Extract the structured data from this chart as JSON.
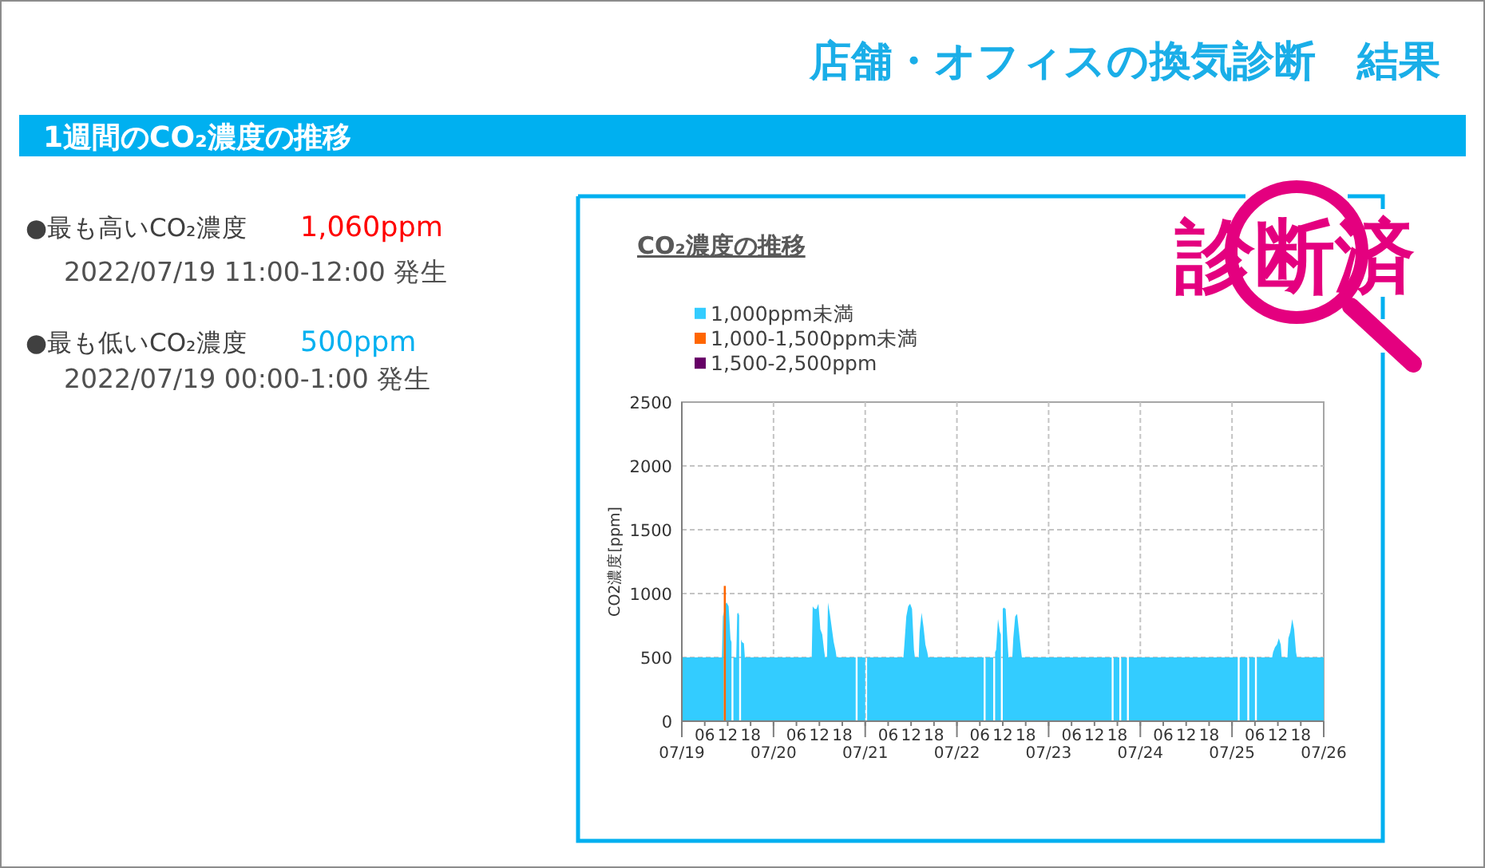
{
  "chart_data": [
    {
      "type": "other",
      "title": "店舗・オフィスの換気診断　結果",
      "subtitle": "1週間のCO₂濃度の推移",
      "annotations": [
        "●最も高いCO₂濃度",
        "1,060ppm",
        "2022/07/19 11:00-12:00 発生",
        "●最も低いCO₂濃度",
        "500ppm",
        "2022/07/19 00:00-1:00 発生",
        "診断済"
      ]
    },
    {
      "type": "area",
      "title": "CO₂濃度の推移",
      "ylabel": "CO2濃度[ppm]",
      "x": [
        "2022-07-19T00:00",
        "2022-07-19T10:30",
        "2022-07-19T10:45",
        "2022-07-19T11:00",
        "2022-07-19T11:15",
        "2022-07-19T11:30",
        "2022-07-19T11:45",
        "2022-07-19T12:15",
        "2022-07-19T12:45",
        "2022-07-19T13:00",
        "2022-07-19T13:15",
        "2022-07-19T13:30",
        "2022-07-19T14:15",
        "2022-07-19T14:30",
        "2022-07-19T14:45",
        "2022-07-19T15:00",
        "2022-07-19T15:15",
        "2022-07-19T15:30",
        "2022-07-19T15:45",
        "2022-07-19T16:15",
        "2022-07-19T16:30",
        "2022-07-20T10:00",
        "2022-07-20T10:15",
        "2022-07-20T10:45",
        "2022-07-20T11:15",
        "2022-07-20T11:45",
        "2022-07-20T12:15",
        "2022-07-20T12:45",
        "2022-07-20T13:15",
        "2022-07-20T13:30",
        "2022-07-20T14:00",
        "2022-07-20T14:15",
        "2022-07-20T14:45",
        "2022-07-20T15:15",
        "2022-07-20T15:45",
        "2022-07-20T16:15",
        "2022-07-20T16:30",
        "2022-07-20T21:30",
        "2022-07-20T21:45",
        "2022-07-20T22:00",
        "2022-07-21T00:00",
        "2022-07-21T00:15",
        "2022-07-21T00:30",
        "2022-07-21T10:00",
        "2022-07-21T10:15",
        "2022-07-21T10:45",
        "2022-07-21T11:15",
        "2022-07-21T11:45",
        "2022-07-21T12:15",
        "2022-07-21T12:45",
        "2022-07-21T13:00",
        "2022-07-21T14:00",
        "2022-07-21T14:15",
        "2022-07-21T14:45",
        "2022-07-21T15:15",
        "2022-07-21T15:45",
        "2022-07-21T16:15",
        "2022-07-21T16:30",
        "2022-07-22T07:00",
        "2022-07-22T07:15",
        "2022-07-22T07:30",
        "2022-07-22T09:30",
        "2022-07-22T09:45",
        "2022-07-22T10:00",
        "2022-07-22T10:15",
        "2022-07-22T10:45",
        "2022-07-22T11:15",
        "2022-07-22T11:30",
        "2022-07-22T11:45",
        "2022-07-22T12:00",
        "2022-07-22T12:15",
        "2022-07-22T12:45",
        "2022-07-22T13:15",
        "2022-07-22T13:30",
        "2022-07-22T14:30",
        "2022-07-22T14:45",
        "2022-07-22T15:15",
        "2022-07-22T15:45",
        "2022-07-22T16:15",
        "2022-07-22T16:45",
        "2022-07-22T17:00",
        "2022-07-23T16:30",
        "2022-07-23T16:45",
        "2022-07-23T17:00",
        "2022-07-23T18:30",
        "2022-07-23T18:45",
        "2022-07-23T19:00",
        "2022-07-23T20:30",
        "2022-07-23T20:45",
        "2022-07-23T21:00",
        "2022-07-25T01:30",
        "2022-07-25T01:45",
        "2022-07-25T02:00",
        "2022-07-25T04:00",
        "2022-07-25T04:15",
        "2022-07-25T04:30",
        "2022-07-25T06:00",
        "2022-07-25T06:15",
        "2022-07-25T06:30",
        "2022-07-25T10:30",
        "2022-07-25T10:45",
        "2022-07-25T11:15",
        "2022-07-25T11:45",
        "2022-07-25T12:15",
        "2022-07-25T12:45",
        "2022-07-25T13:00",
        "2022-07-25T14:30",
        "2022-07-25T14:45",
        "2022-07-25T15:15",
        "2022-07-25T15:45",
        "2022-07-25T16:15",
        "2022-07-25T16:45",
        "2022-07-25T17:00",
        "2022-07-26T00:00"
      ],
      "series": [
        {
          "name": "1,000ppm未満",
          "color": "#33ccff",
          "values": [
            500,
            500,
            820,
            860,
            null,
            920,
            930,
            900,
            640,
            620,
            null,
            500,
            500,
            840,
            850,
            830,
            null,
            640,
            620,
            610,
            500,
            500,
            900,
            880,
            880,
            920,
            720,
            680,
            550,
            500,
            500,
            930,
            840,
            730,
            620,
            550,
            500,
            500,
            null,
            500,
            500,
            null,
            500,
            500,
            600,
            820,
            900,
            920,
            880,
            560,
            500,
            500,
            700,
            850,
            740,
            600,
            540,
            500,
            500,
            null,
            500,
            500,
            null,
            540,
            560,
            800,
            700,
            680,
            null,
            880,
            890,
            880,
            620,
            500,
            500,
            650,
            820,
            840,
            700,
            560,
            500,
            500,
            null,
            500,
            500,
            null,
            500,
            500,
            null,
            500,
            500,
            null,
            500,
            500,
            null,
            500,
            500,
            null,
            500,
            500,
            540,
            580,
            600,
            650,
            600,
            500,
            500,
            650,
            700,
            800,
            720,
            540,
            500,
            500
          ]
        },
        {
          "name": "1,000-1,500ppm未満",
          "color": "#ff6600",
          "type": "bar",
          "x": [
            "2022-07-19T11:15"
          ],
          "values": [
            1060
          ]
        },
        {
          "name": "1,500-2,500ppm",
          "color": "#660066",
          "values": [
            null,
            null,
            null,
            null,
            null,
            null,
            null,
            null,
            null,
            null,
            null,
            null,
            null,
            null,
            null,
            null,
            null,
            null,
            null,
            null,
            null,
            null,
            null,
            null,
            null,
            null,
            null,
            null,
            null,
            null,
            null,
            null,
            null,
            null,
            null,
            null,
            null,
            null,
            null,
            null,
            null,
            null,
            null,
            null,
            null,
            null,
            null,
            null,
            null,
            null,
            null,
            null,
            null,
            null,
            null,
            null,
            null,
            null,
            null,
            null,
            null,
            null,
            null,
            null,
            null,
            null,
            null,
            null,
            null,
            null,
            null,
            null,
            null,
            null,
            null,
            null,
            null,
            null,
            null,
            null,
            null,
            null,
            null,
            null,
            null,
            null,
            null,
            null,
            null,
            null,
            null,
            null,
            null,
            null,
            null,
            null,
            null,
            null,
            null,
            null,
            null,
            null,
            null,
            null,
            null,
            null,
            null,
            null,
            null,
            null,
            null,
            null,
            null,
            null
          ]
        }
      ],
      "xlim": [
        "2022-07-19T00:00",
        "2022-07-26T00:00"
      ],
      "xticks": [
        {
          "value": "2022-07-19",
          "label": null
        },
        {
          "value": "2022-07-19T06:00",
          "label": "06"
        },
        {
          "value": "2022-07-19T12:00",
          "label": "12"
        },
        {
          "value": "2022-07-19T18:00",
          "label": "18"
        },
        {
          "value": "2022-07-20",
          "label": null
        },
        {
          "value": "2022-07-20T06:00",
          "label": "06"
        },
        {
          "value": "2022-07-20T12:00",
          "label": "12"
        },
        {
          "value": "2022-07-20T18:00",
          "label": "18"
        },
        {
          "value": "2022-07-21",
          "label": null
        },
        {
          "value": "2022-07-21T06:00",
          "label": "06"
        },
        {
          "value": "2022-07-21T12:00",
          "label": "12"
        },
        {
          "value": "2022-07-21T18:00",
          "label": "18"
        },
        {
          "value": "2022-07-22",
          "label": null
        },
        {
          "value": "2022-07-22T06:00",
          "label": "06"
        },
        {
          "value": "2022-07-22T12:00",
          "label": "12"
        },
        {
          "value": "2022-07-22T18:00",
          "label": "18"
        },
        {
          "value": "2022-07-23",
          "label": null
        },
        {
          "value": "2022-07-23T06:00",
          "label": "06"
        },
        {
          "value": "2022-07-23T12:00",
          "label": "12"
        },
        {
          "value": "2022-07-23T18:00",
          "label": "18"
        },
        {
          "value": "2022-07-24",
          "label": null
        },
        {
          "value": "2022-07-24T06:00",
          "label": "06"
        },
        {
          "value": "2022-07-24T12:00",
          "label": "12"
        },
        {
          "value": "2022-07-24T18:00",
          "label": "18"
        },
        {
          "value": "2022-07-25",
          "label": null
        },
        {
          "value": "2022-07-25T06:00",
          "label": "06"
        },
        {
          "value": "2022-07-25T12:00",
          "label": "12"
        },
        {
          "value": "2022-07-25T18:00",
          "label": "18"
        },
        {
          "value": "2022-07-26",
          "label": null
        }
      ],
      "x2lim": [
        "2022-07-19T00:00",
        "2022-07-26T00:00"
      ],
      "x2ticks": [
        {
          "value": "2022-07-19",
          "label": "07/19"
        },
        {
          "value": "2022-07-20",
          "label": "07/20"
        },
        {
          "value": "2022-07-21",
          "label": "07/21"
        },
        {
          "value": "2022-07-22",
          "label": "07/22"
        },
        {
          "value": "2022-07-23",
          "label": "07/23"
        },
        {
          "value": "2022-07-24",
          "label": "07/24"
        },
        {
          "value": "2022-07-25",
          "label": "07/25"
        },
        {
          "value": "2022-07-26",
          "label": "07/26"
        }
      ],
      "ylim": [
        0,
        2500
      ],
      "yticks": [
        0,
        500,
        1000,
        1500,
        2000,
        2500
      ],
      "grid": true,
      "legend": "top left"
    }
  ]
}
